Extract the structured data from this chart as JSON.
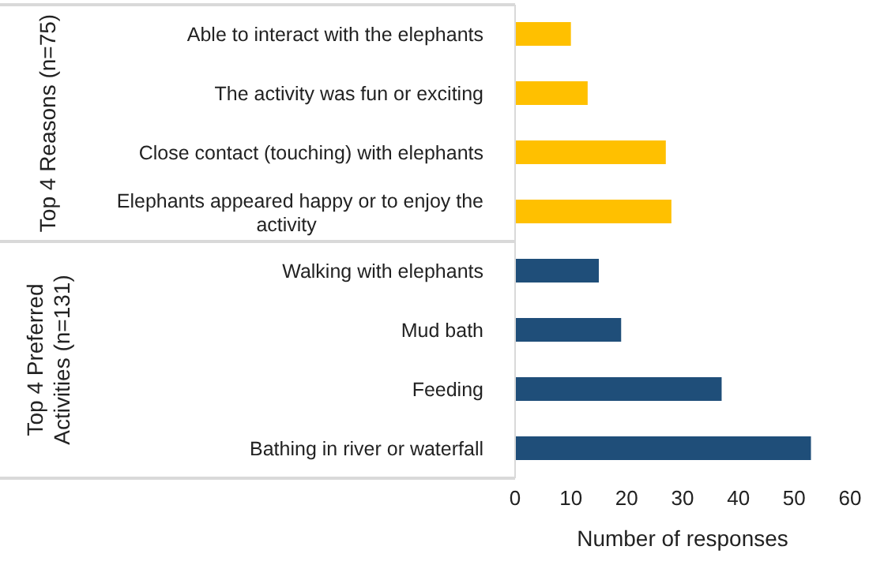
{
  "chart_data": {
    "type": "bar",
    "orientation": "horizontal",
    "categories": [
      "Able to interact with the elephants",
      "The activity was fun or exciting",
      "Close contact (touching) with elephants",
      "Elephants appeared happy or to enjoy the activity",
      "Walking with elephants",
      "Mud bath",
      "Feeding",
      "Bathing in river or waterfall"
    ],
    "values": [
      10,
      13,
      27,
      28,
      15,
      19,
      37,
      53
    ],
    "colors": [
      "#ffc000",
      "#ffc000",
      "#ffc000",
      "#ffc000",
      "#1f4e79",
      "#1f4e79",
      "#1f4e79",
      "#1f4e79"
    ],
    "xlabel": "Number of responses",
    "xlim": [
      0,
      60
    ],
    "xticks": [
      0,
      10,
      20,
      30,
      40,
      50,
      60
    ],
    "annotations": [
      "Top 4 Reasons (n=75)",
      "Top 4 Preferred Activities (n=131)"
    ],
    "grid": false,
    "legend": false
  }
}
